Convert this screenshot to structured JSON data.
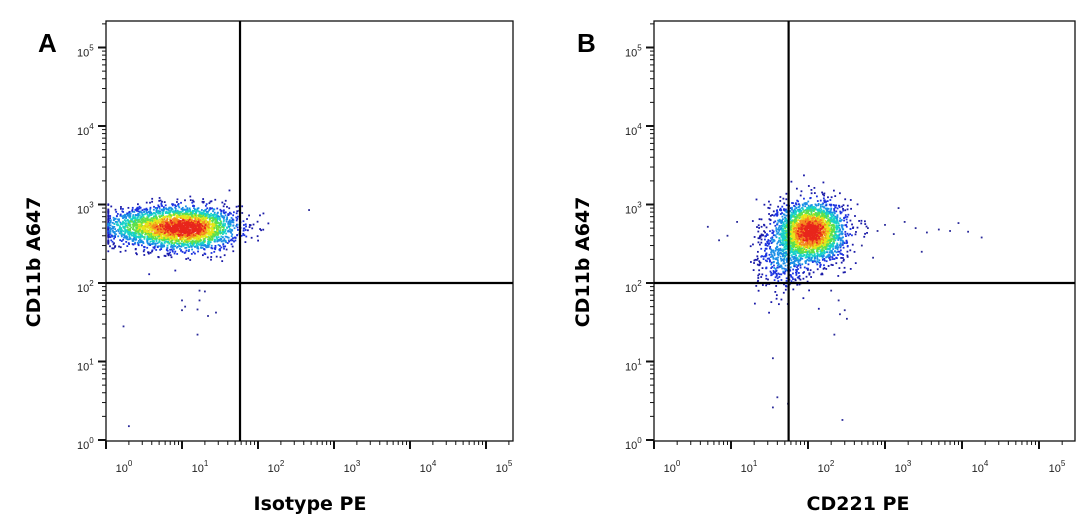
{
  "chart_data": [
    {
      "type": "scatter",
      "panel_label": "A",
      "xlabel": "Isotype PE",
      "ylabel": "CD11b A647",
      "xscale": "log",
      "yscale": "log",
      "xlim": [
        1,
        220000
      ],
      "ylim": [
        1,
        215000
      ],
      "xticks": [
        "10^0",
        "10^1",
        "10^2",
        "10^3",
        "10^4",
        "10^5"
      ],
      "yticks": [
        "10^0",
        "10^1",
        "10^2",
        "10^3",
        "10^4",
        "10^5"
      ],
      "quadrant_gate": {
        "x": 58,
        "y": 100
      },
      "color_mode": "density (blue-green-yellow-red)",
      "populations": [
        {
          "center": [
            12,
            500
          ],
          "log_sd": [
            0.33,
            0.14
          ],
          "events": 2200
        },
        {
          "center": [
            3,
            520
          ],
          "log_sd": [
            0.35,
            0.12
          ],
          "events": 900
        }
      ],
      "outliers": [
        [
          1.7,
          28
        ],
        [
          10,
          45
        ],
        [
          11,
          50
        ],
        [
          16,
          46
        ],
        [
          17,
          60
        ],
        [
          20,
          78
        ],
        [
          22,
          38
        ],
        [
          28,
          42
        ],
        [
          16,
          22
        ],
        [
          2,
          1.5
        ],
        [
          62,
          780
        ],
        [
          470,
          850
        ],
        [
          10,
          60
        ],
        [
          17,
          80
        ]
      ]
    },
    {
      "type": "scatter",
      "panel_label": "B",
      "xlabel": "CD221 PE",
      "ylabel": "CD11b A647",
      "xscale": "log",
      "yscale": "log",
      "xlim": [
        1,
        220000
      ],
      "ylim": [
        1,
        215000
      ],
      "xticks": [
        "10^0",
        "10^1",
        "10^2",
        "10^3",
        "10^4",
        "10^5"
      ],
      "yticks": [
        "10^0",
        "10^1",
        "10^2",
        "10^3",
        "10^4",
        "10^5"
      ],
      "quadrant_gate": {
        "x": 56,
        "y": 100
      },
      "color_mode": "density (blue-green-yellow-red)",
      "populations": [
        {
          "center": [
            110,
            450
          ],
          "log_sd": [
            0.22,
            0.19
          ],
          "events": 2600
        },
        {
          "center": [
            45,
            200
          ],
          "log_sd": [
            0.18,
            0.22
          ],
          "events": 400
        }
      ],
      "outliers": [
        [
          5,
          520
        ],
        [
          7,
          350
        ],
        [
          9,
          400
        ],
        [
          12,
          600
        ],
        [
          200,
          80
        ],
        [
          250,
          60
        ],
        [
          260,
          40
        ],
        [
          300,
          45
        ],
        [
          320,
          35
        ],
        [
          220,
          22
        ],
        [
          35,
          11
        ],
        [
          40,
          3.5
        ],
        [
          35,
          2.6
        ],
        [
          55,
          2.9
        ],
        [
          280,
          1.8
        ],
        [
          600,
          500
        ],
        [
          800,
          460
        ],
        [
          1000,
          550
        ],
        [
          1300,
          420
        ],
        [
          1800,
          600
        ],
        [
          2500,
          500
        ],
        [
          3500,
          440
        ],
        [
          3000,
          250
        ],
        [
          5000,
          480
        ],
        [
          7000,
          460
        ],
        [
          9000,
          580
        ],
        [
          12000,
          450
        ],
        [
          18000,
          380
        ],
        [
          8000,
          100
        ],
        [
          1500,
          900
        ],
        [
          500,
          300
        ],
        [
          700,
          210
        ]
      ]
    }
  ]
}
